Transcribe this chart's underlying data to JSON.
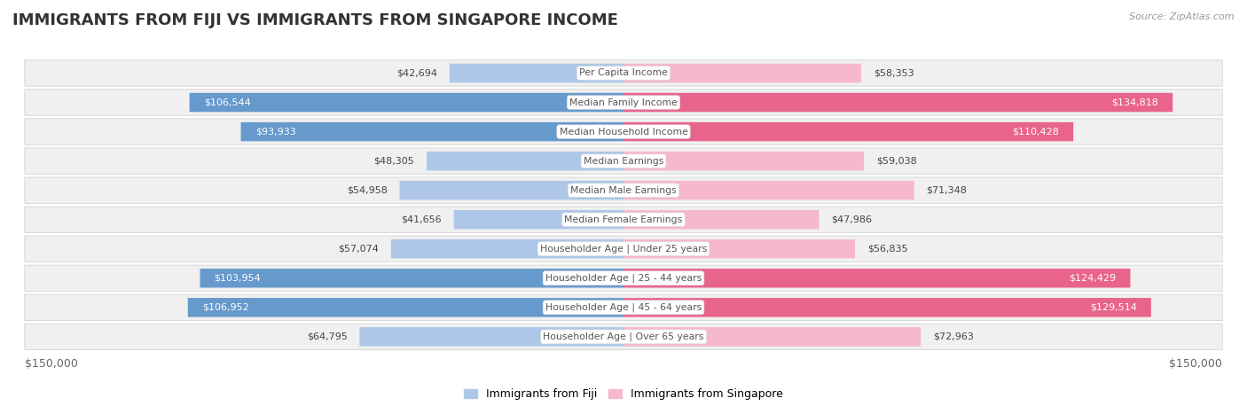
{
  "title": "IMMIGRANTS FROM FIJI VS IMMIGRANTS FROM SINGAPORE INCOME",
  "source": "Source: ZipAtlas.com",
  "categories": [
    "Per Capita Income",
    "Median Family Income",
    "Median Household Income",
    "Median Earnings",
    "Median Male Earnings",
    "Median Female Earnings",
    "Householder Age | Under 25 years",
    "Householder Age | 25 - 44 years",
    "Householder Age | 45 - 64 years",
    "Householder Age | Over 65 years"
  ],
  "fiji_values": [
    42694,
    106544,
    93933,
    48305,
    54958,
    41656,
    57074,
    103954,
    106952,
    64795
  ],
  "singapore_values": [
    58353,
    134818,
    110428,
    59038,
    71348,
    47986,
    56835,
    124429,
    129514,
    72963
  ],
  "fiji_labels": [
    "$42,694",
    "$106,544",
    "$93,933",
    "$48,305",
    "$54,958",
    "$41,656",
    "$57,074",
    "$103,954",
    "$106,952",
    "$64,795"
  ],
  "singapore_labels": [
    "$58,353",
    "$134,818",
    "$110,428",
    "$59,038",
    "$71,348",
    "$47,986",
    "$56,835",
    "$124,429",
    "$129,514",
    "$72,963"
  ],
  "fiji_color_light": "#aec6e8",
  "fiji_color_dark": "#6699cc",
  "singapore_color_light": "#f5b8cc",
  "singapore_color_dark": "#e8648c",
  "max_value": 150000,
  "x_label_left": "$150,000",
  "x_label_right": "$150,000",
  "legend_fiji": "Immigrants from Fiji",
  "legend_singapore": "Immigrants from Singapore",
  "bg_color": "#ffffff",
  "row_bg_color": "#f0f0f0",
  "row_gap_color": "#ffffff",
  "title_fontsize": 13,
  "label_fontsize": 8,
  "category_fontsize": 8,
  "fiji_white_threshold": 70000,
  "singapore_white_threshold": 85000
}
